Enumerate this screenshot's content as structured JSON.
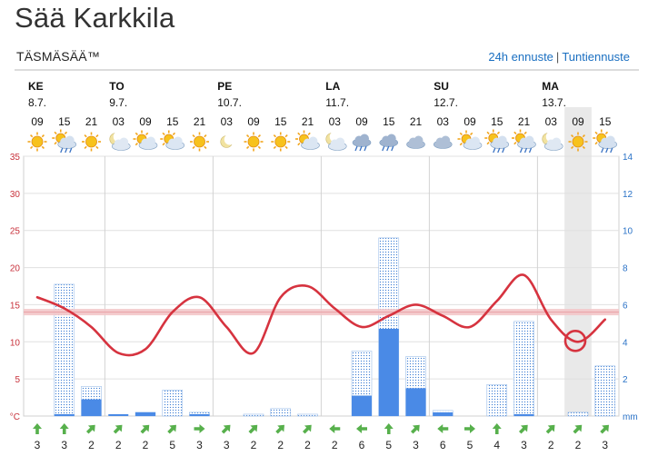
{
  "page": {
    "title": "Sää Karkkila",
    "brand": "TÄSMÄSÄÄ™",
    "links": [
      "24h ennuste",
      "Tuntiennuste"
    ],
    "separator": "|"
  },
  "chart_data": {
    "type": "line",
    "days": [
      {
        "name": "KE",
        "date": "8.7.",
        "start_col": 0
      },
      {
        "name": "TO",
        "date": "9.7.",
        "start_col": 3
      },
      {
        "name": "PE",
        "date": "10.7.",
        "start_col": 7
      },
      {
        "name": "LA",
        "date": "11.7.",
        "start_col": 11
      },
      {
        "name": "SU",
        "date": "12.7.",
        "start_col": 15
      },
      {
        "name": "MA",
        "date": "13.7.",
        "start_col": 19
      }
    ],
    "hours": [
      "09",
      "15",
      "21",
      "03",
      "09",
      "15",
      "21",
      "03",
      "09",
      "15",
      "21",
      "03",
      "09",
      "15",
      "21",
      "03",
      "09",
      "15",
      "21",
      "03",
      "09",
      "15"
    ],
    "symbols": [
      "sun",
      "sun-cloud-rain",
      "sun",
      "moon-cloud",
      "sun-cloud",
      "sun-cloud",
      "sun",
      "moon",
      "sun",
      "sun",
      "sun-cloud",
      "moon-cloud",
      "cloud-rain",
      "cloud-rain",
      "cloud",
      "cloud",
      "sun-cloud",
      "sun-cloud-rain",
      "sun-cloud-rain",
      "moon-cloud",
      "sun",
      "sun-cloud-rain"
    ],
    "temperature": {
      "unit": "°C",
      "ylim": [
        0,
        35
      ],
      "ticks": [
        5,
        10,
        15,
        20,
        25,
        30,
        35
      ],
      "values": [
        16,
        14.5,
        12,
        8.5,
        9,
        14,
        16,
        12,
        8.5,
        16,
        17.5,
        14.5,
        12,
        13.5,
        15,
        13.5,
        12,
        15.5,
        19,
        13,
        10,
        13
      ]
    },
    "precipitation": {
      "unit": "mm",
      "ylim": [
        0,
        14
      ],
      "ticks": [
        2,
        4,
        6,
        8,
        10,
        12,
        14
      ],
      "max_values": [
        0,
        7.1,
        1.6,
        0,
        0.2,
        1.4,
        0.2,
        0,
        0.1,
        0.4,
        0.1,
        0,
        3.5,
        9.6,
        3.2,
        0.3,
        0,
        1.7,
        5.1,
        0,
        0.2,
        2.7
      ],
      "values": [
        0,
        0.1,
        0.9,
        0.1,
        0.2,
        0,
        0.1,
        0,
        0,
        0,
        0,
        0,
        1.1,
        4.7,
        1.5,
        0.2,
        0,
        0,
        0.1,
        0,
        0,
        0
      ]
    },
    "reference_temperature": 14,
    "highlight_col": 20,
    "wind": {
      "speeds": [
        3,
        3,
        2,
        2,
        2,
        5,
        3,
        3,
        2,
        2,
        2,
        2,
        6,
        5,
        3,
        6,
        5,
        4,
        3,
        2,
        2,
        3
      ],
      "directions": [
        "N",
        "N",
        "NE",
        "NE",
        "NE",
        "NE",
        "E",
        "NE",
        "NE",
        "NE",
        "NE",
        "W",
        "W",
        "N",
        "NE",
        "W",
        "E",
        "N",
        "NE",
        "NE",
        "NE",
        "NE"
      ]
    }
  }
}
